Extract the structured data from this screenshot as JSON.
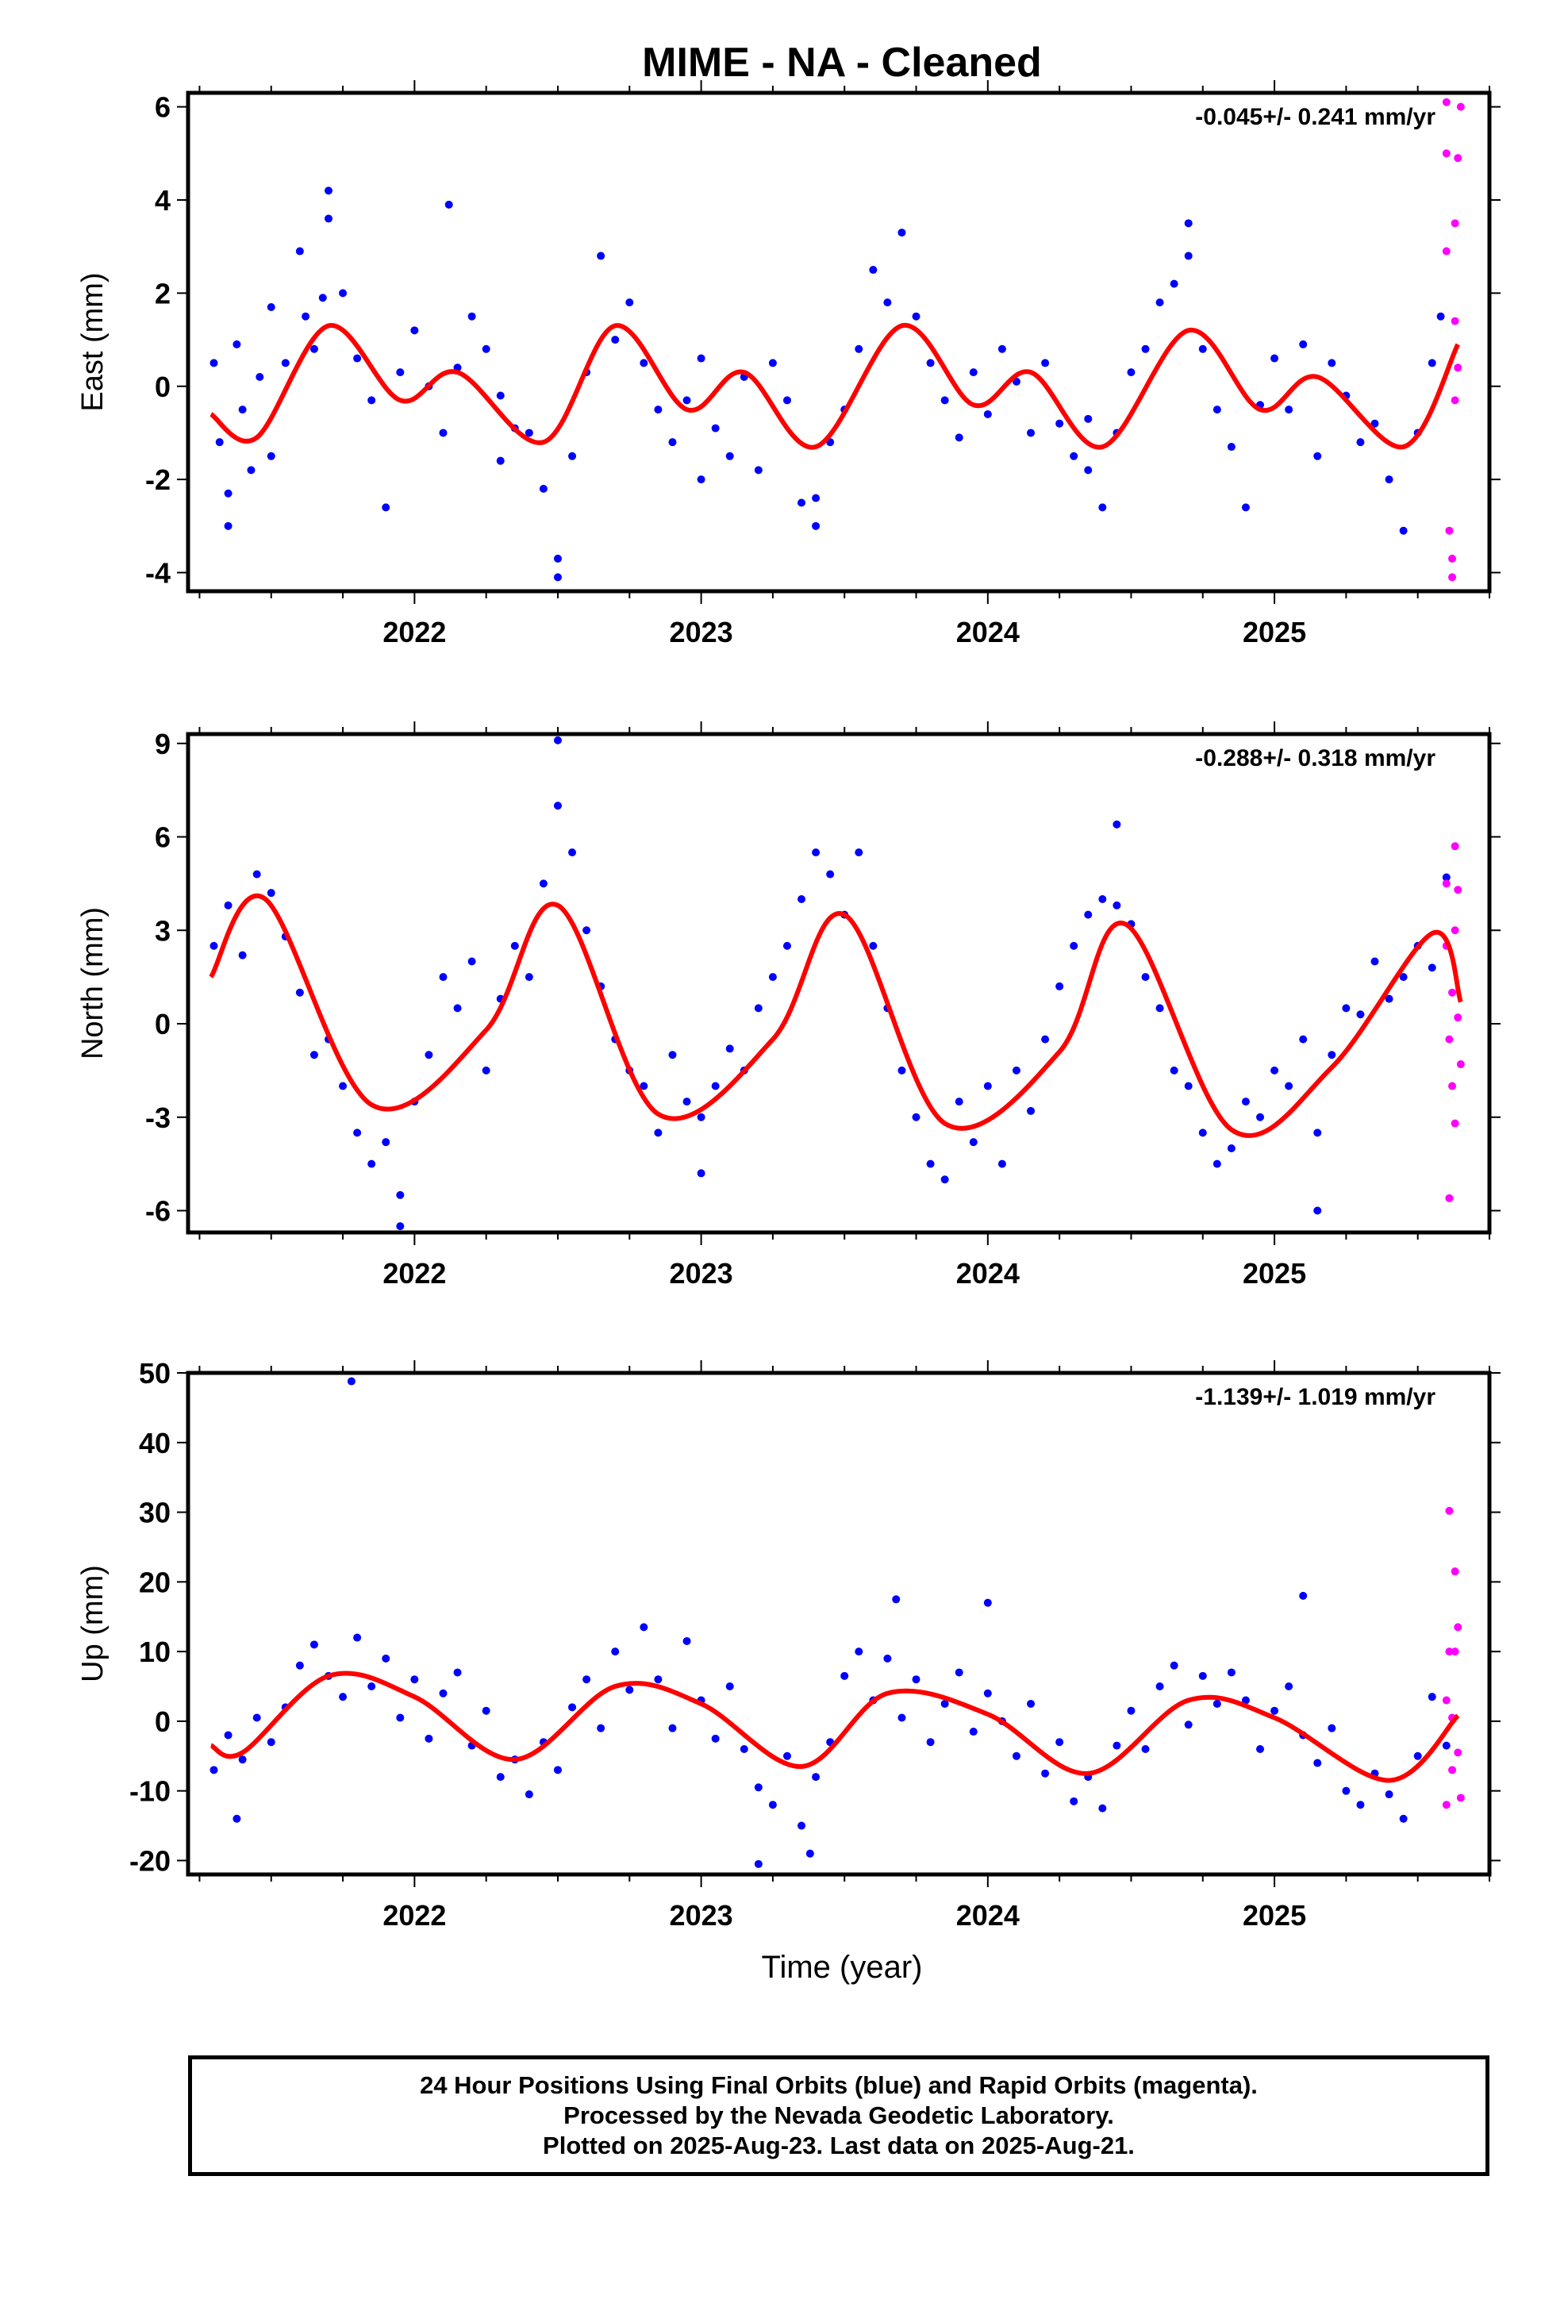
{
  "title": "MIME  - NA - Cleaned",
  "x_axis_label": "Time (year)",
  "colors": {
    "final": "#0000ff",
    "rapid": "#ff00ff",
    "model": "#ff0000"
  },
  "footer": {
    "line1": "24 Hour Positions Using Final Orbits (blue) and Rapid Orbits (magenta).",
    "line2": "Processed by the Nevada Geodetic Laboratory.",
    "line3": "Plotted on 2025-Aug-23. Last data on 2025-Aug-21."
  },
  "chart_data": [
    {
      "type": "scatter",
      "ylabel": "East (mm)",
      "rate": "-0.045+/- 0.241 mm/yr",
      "xlim": [
        2021.21,
        2025.75
      ],
      "ylim": [
        -4.4,
        6.3
      ],
      "yticks": [
        -4,
        -2,
        0,
        2,
        4,
        6
      ],
      "xticks": [
        2022,
        2023,
        2024,
        2025
      ],
      "xtick_labels": [
        "2022",
        "2023",
        "2024",
        "2025"
      ],
      "model": {
        "x": [
          2021.29,
          2021.45,
          2021.7,
          2021.95,
          2022.15,
          2022.45,
          2022.7,
          2022.95,
          2023.15,
          2023.4,
          2023.7,
          2023.95,
          2024.15,
          2024.4,
          2024.7,
          2024.95,
          2025.15,
          2025.45,
          2025.64
        ],
        "y": [
          -0.6,
          -1.1,
          1.3,
          -0.3,
          0.3,
          -1.2,
          1.3,
          -0.5,
          0.3,
          -1.3,
          1.3,
          -0.4,
          0.3,
          -1.3,
          1.2,
          -0.5,
          0.2,
          -1.3,
          0.9
        ]
      },
      "final": {
        "x": [
          2021.3,
          2021.32,
          2021.35,
          2021.38,
          2021.4,
          2021.43,
          2021.46,
          2021.5,
          2021.55,
          2021.6,
          2021.62,
          2021.65,
          2021.68,
          2021.7,
          2021.75,
          2021.8,
          2021.85,
          2021.9,
          2021.95,
          2022.0,
          2022.05,
          2022.1,
          2022.15,
          2022.2,
          2022.25,
          2022.3,
          2022.35,
          2022.4,
          2022.45,
          2022.5,
          2022.55,
          2022.6,
          2022.65,
          2022.7,
          2022.75,
          2022.8,
          2022.85,
          2022.9,
          2022.95,
          2023.0,
          2023.05,
          2023.1,
          2023.15,
          2023.2,
          2023.25,
          2023.3,
          2023.35,
          2023.4,
          2023.45,
          2023.5,
          2023.55,
          2023.6,
          2023.65,
          2023.7,
          2023.75,
          2023.8,
          2023.85,
          2023.9,
          2023.95,
          2024.0,
          2024.05,
          2024.1,
          2024.15,
          2024.2,
          2024.25,
          2024.3,
          2024.35,
          2024.4,
          2024.45,
          2024.5,
          2024.55,
          2024.6,
          2024.65,
          2024.7,
          2024.75,
          2024.8,
          2024.85,
          2024.9,
          2024.95,
          2025.0,
          2025.05,
          2025.1,
          2025.15,
          2025.2,
          2025.25,
          2025.3,
          2025.35,
          2025.4,
          2025.45,
          2025.5,
          2025.55,
          2025.58,
          2021.7,
          2022.12,
          2021.35,
          2022.5,
          2023.4,
          2024.7,
          2021.5,
          2022.3,
          2023.0,
          2024.35
        ],
        "y": [
          0.5,
          -1.2,
          -2.3,
          0.9,
          -0.5,
          -1.8,
          0.2,
          -1.5,
          0.5,
          2.9,
          1.5,
          0.8,
          1.9,
          4.2,
          2.0,
          0.6,
          -0.3,
          -2.6,
          0.3,
          1.2,
          0.0,
          -1.0,
          0.4,
          1.5,
          0.8,
          -0.2,
          -0.9,
          -1.0,
          -2.2,
          -4.1,
          -1.5,
          0.3,
          2.8,
          1.0,
          1.8,
          0.5,
          -0.5,
          -1.2,
          -0.3,
          0.6,
          -0.9,
          -1.5,
          0.2,
          -1.8,
          0.5,
          -0.3,
          -2.5,
          -3.0,
          -1.2,
          -0.5,
          0.8,
          2.5,
          1.8,
          3.3,
          1.5,
          0.5,
          -0.3,
          -1.1,
          0.3,
          -0.6,
          0.8,
          0.1,
          -1.0,
          0.5,
          -0.8,
          -1.5,
          -1.8,
          -2.6,
          -1.0,
          0.3,
          0.8,
          1.8,
          2.2,
          3.5,
          0.8,
          -0.5,
          -1.3,
          -2.6,
          -0.4,
          0.6,
          -0.5,
          0.9,
          -1.5,
          0.5,
          -0.2,
          -1.2,
          -0.8,
          -2.0,
          -3.1,
          -1.0,
          0.5,
          1.5,
          3.6,
          3.9,
          -3.0,
          -3.7,
          -2.4,
          2.8,
          1.7,
          -1.6,
          -2.0,
          -0.7
        ]
      },
      "rapid": {
        "x": [
          2025.6,
          2025.6,
          2025.6,
          2025.61,
          2025.62,
          2025.62,
          2025.63,
          2025.63,
          2025.63,
          2025.64,
          2025.64,
          2025.65
        ],
        "y": [
          6.1,
          5.0,
          2.9,
          -3.1,
          -3.7,
          -4.1,
          3.5,
          1.4,
          -0.3,
          4.9,
          0.4,
          6.0
        ]
      }
    },
    {
      "type": "scatter",
      "ylabel": "North (mm)",
      "rate": "-0.288+/- 0.318 mm/yr",
      "xlim": [
        2021.21,
        2025.75
      ],
      "ylim": [
        -6.7,
        9.3
      ],
      "yticks": [
        -6,
        -3,
        0,
        3,
        6,
        9
      ],
      "xticks": [
        2022,
        2023,
        2024,
        2025
      ],
      "xtick_labels": [
        "2022",
        "2023",
        "2024",
        "2025"
      ],
      "model": {
        "x": [
          2021.29,
          2021.48,
          2021.85,
          2022.25,
          2022.5,
          2022.85,
          2023.25,
          2023.5,
          2023.85,
          2024.25,
          2024.48,
          2024.85,
          2025.2,
          2025.55,
          2025.65
        ],
        "y": [
          1.5,
          4.0,
          -2.6,
          -0.2,
          3.8,
          -2.9,
          -0.5,
          3.5,
          -3.2,
          -0.9,
          3.2,
          -3.4,
          -1.4,
          2.9,
          0.7
        ]
      },
      "final": {
        "x": [
          2021.3,
          2021.35,
          2021.4,
          2021.45,
          2021.5,
          2021.55,
          2021.6,
          2021.65,
          2021.7,
          2021.75,
          2021.8,
          2021.85,
          2021.9,
          2021.95,
          2022.0,
          2022.05,
          2022.1,
          2022.15,
          2022.2,
          2022.25,
          2022.3,
          2022.35,
          2022.4,
          2022.45,
          2022.5,
          2022.55,
          2022.6,
          2022.65,
          2022.7,
          2022.75,
          2022.8,
          2022.85,
          2022.9,
          2022.95,
          2023.0,
          2023.05,
          2023.1,
          2023.15,
          2023.2,
          2023.25,
          2023.3,
          2023.35,
          2023.4,
          2023.45,
          2023.5,
          2023.55,
          2023.6,
          2023.65,
          2023.7,
          2023.75,
          2023.8,
          2023.85,
          2023.9,
          2023.95,
          2024.0,
          2024.05,
          2024.1,
          2024.15,
          2024.2,
          2024.25,
          2024.3,
          2024.35,
          2024.4,
          2024.45,
          2024.5,
          2024.55,
          2024.6,
          2024.65,
          2024.7,
          2024.75,
          2024.8,
          2024.85,
          2024.9,
          2024.95,
          2025.0,
          2025.05,
          2025.1,
          2025.15,
          2025.2,
          2025.25,
          2025.3,
          2025.35,
          2025.4,
          2025.45,
          2025.5,
          2025.55,
          2025.6,
          2021.95,
          2022.5,
          2024.45,
          2023.0,
          2025.15
        ],
        "y": [
          2.5,
          3.8,
          2.2,
          4.8,
          4.2,
          2.8,
          1.0,
          -1.0,
          -0.5,
          -2.0,
          -3.5,
          -4.5,
          -3.8,
          -5.5,
          -2.5,
          -1.0,
          1.5,
          0.5,
          2.0,
          -1.5,
          0.8,
          2.5,
          1.5,
          4.5,
          7.0,
          5.5,
          3.0,
          1.2,
          -0.5,
          -1.5,
          -2.0,
          -3.5,
          -1.0,
          -2.5,
          -3.0,
          -2.0,
          -0.8,
          -1.5,
          0.5,
          1.5,
          2.5,
          4.0,
          5.5,
          4.8,
          3.5,
          5.5,
          2.5,
          0.5,
          -1.5,
          -3.0,
          -4.5,
          -5.0,
          -2.5,
          -3.8,
          -2.0,
          -4.5,
          -1.5,
          -2.8,
          -0.5,
          1.2,
          2.5,
          3.5,
          4.0,
          6.4,
          3.2,
          1.5,
          0.5,
          -1.5,
          -2.0,
          -3.5,
          -4.5,
          -4.0,
          -2.5,
          -3.0,
          -1.5,
          -2.0,
          -0.5,
          -3.5,
          -1.0,
          0.5,
          0.3,
          2.0,
          0.8,
          1.5,
          2.5,
          1.8,
          4.7,
          -6.5,
          9.1,
          3.8,
          -4.8,
          -6.0
        ]
      },
      "rapid": {
        "x": [
          2025.6,
          2025.6,
          2025.61,
          2025.61,
          2025.62,
          2025.62,
          2025.63,
          2025.63,
          2025.63,
          2025.64,
          2025.64,
          2025.65
        ],
        "y": [
          4.5,
          2.5,
          -0.5,
          -5.6,
          1.0,
          -2.0,
          5.7,
          3.0,
          -3.2,
          4.3,
          0.2,
          -1.3
        ]
      }
    },
    {
      "type": "scatter",
      "ylabel": "Up (mm)",
      "rate": "-1.139+/- 1.019 mm/yr",
      "xlim": [
        2021.21,
        2025.75
      ],
      "ylim": [
        -22,
        50
      ],
      "yticks": [
        -20,
        -10,
        0,
        10,
        20,
        30,
        40,
        50
      ],
      "xticks": [
        2022,
        2023,
        2024,
        2025
      ],
      "xtick_labels": [
        "2022",
        "2023",
        "2024",
        "2025"
      ],
      "model": {
        "x": [
          2021.29,
          2021.4,
          2021.7,
          2022.0,
          2022.35,
          2022.7,
          2023.0,
          2023.35,
          2023.65,
          2024.0,
          2024.35,
          2024.7,
          2025.0,
          2025.4,
          2025.64
        ],
        "y": [
          -3.5,
          -4.5,
          6.5,
          3.5,
          -5.5,
          5.0,
          2.5,
          -6.5,
          4.0,
          1.0,
          -7.5,
          3.0,
          0.5,
          -8.5,
          0.8
        ]
      },
      "final": {
        "x": [
          2021.3,
          2021.35,
          2021.38,
          2021.4,
          2021.45,
          2021.5,
          2021.55,
          2021.6,
          2021.65,
          2021.7,
          2021.75,
          2021.8,
          2021.85,
          2021.9,
          2021.95,
          2022.0,
          2022.05,
          2022.1,
          2022.15,
          2022.2,
          2022.25,
          2022.3,
          2022.35,
          2022.4,
          2022.45,
          2022.5,
          2022.55,
          2022.6,
          2022.65,
          2022.7,
          2022.75,
          2022.8,
          2022.85,
          2022.9,
          2022.95,
          2023.0,
          2023.05,
          2023.1,
          2023.15,
          2023.2,
          2023.25,
          2023.3,
          2023.35,
          2023.4,
          2023.45,
          2023.5,
          2023.55,
          2023.6,
          2023.65,
          2023.7,
          2023.75,
          2023.8,
          2023.85,
          2023.9,
          2023.95,
          2024.0,
          2024.05,
          2024.1,
          2024.15,
          2024.2,
          2024.25,
          2024.3,
          2024.35,
          2024.4,
          2024.45,
          2024.5,
          2024.55,
          2024.6,
          2024.65,
          2024.7,
          2024.75,
          2024.8,
          2024.85,
          2024.9,
          2024.95,
          2025.0,
          2025.05,
          2025.1,
          2025.15,
          2025.2,
          2025.25,
          2025.3,
          2025.35,
          2025.4,
          2025.45,
          2025.5,
          2025.55,
          2025.6,
          2021.78,
          2023.68,
          2024.0,
          2025.1,
          2023.2,
          2023.38
        ],
        "y": [
          -7.0,
          -2.0,
          -14.0,
          -5.5,
          0.5,
          -3.0,
          2.0,
          8.0,
          11.0,
          6.5,
          3.5,
          12.0,
          5.0,
          9.0,
          0.5,
          6.0,
          -2.5,
          4.0,
          7.0,
          -3.5,
          1.5,
          -8.0,
          -5.5,
          -10.5,
          -3.0,
          -7.0,
          2.0,
          6.0,
          -1.0,
          10.0,
          4.5,
          13.5,
          6.0,
          -1.0,
          11.5,
          3.0,
          -2.5,
          5.0,
          -4.0,
          -9.5,
          -12.0,
          -5.0,
          -15.0,
          -8.0,
          -3.0,
          6.5,
          10.0,
          3.0,
          9.0,
          0.5,
          6.0,
          -3.0,
          2.5,
          7.0,
          -1.5,
          4.0,
          0.0,
          -5.0,
          2.5,
          -7.5,
          -3.0,
          -11.5,
          -8.0,
          -12.5,
          -3.5,
          1.5,
          -4.0,
          5.0,
          8.0,
          -0.5,
          6.5,
          2.5,
          7.0,
          3.0,
          -4.0,
          1.5,
          5.0,
          -2.0,
          -6.0,
          -1.0,
          -10.0,
          -12.0,
          -7.5,
          -10.5,
          -14.0,
          -5.0,
          3.5,
          -3.5,
          48.8,
          17.5,
          17.0,
          18.0,
          -20.5,
          -19.0
        ]
      },
      "rapid": {
        "x": [
          2025.6,
          2025.6,
          2025.61,
          2025.61,
          2025.62,
          2025.62,
          2025.63,
          2025.63,
          2025.64,
          2025.64,
          2025.65
        ],
        "y": [
          -12.0,
          3.0,
          10.0,
          30.2,
          -7.0,
          0.5,
          21.5,
          10.0,
          -4.5,
          13.5,
          -11.0
        ]
      }
    }
  ]
}
